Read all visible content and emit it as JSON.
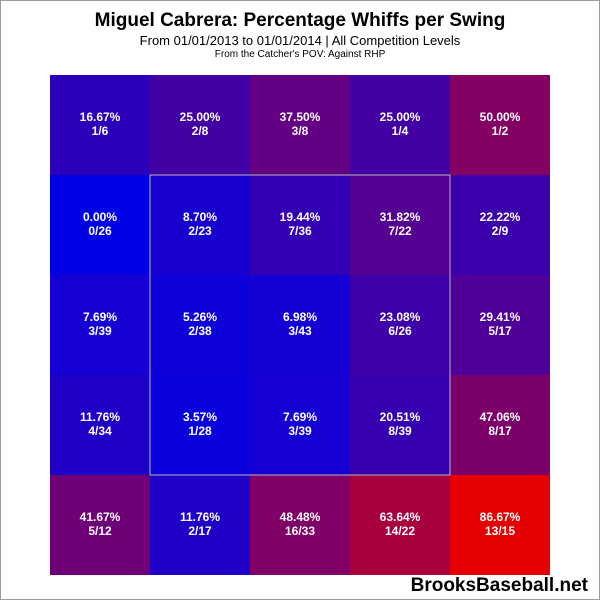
{
  "title": "Miguel Cabrera: Percentage Whiffs per Swing",
  "subtitle": "From 01/01/2013 to 01/01/2014 | All Competition Levels",
  "subtitle2": "From the Catcher's POV:   Against RHP",
  "watermark": "BrooksBaseball.net",
  "chart_data": {
    "type": "heatmap",
    "rows": 5,
    "cols": 5,
    "strike_zone": {
      "row_start": 1,
      "row_end": 3,
      "col_start": 1,
      "col_end": 3
    },
    "color_scale": {
      "low": "#0000e6",
      "high": "#e60000"
    },
    "cells": [
      [
        {
          "pct": "16.67%",
          "frac": "1/6",
          "value": 16.67
        },
        {
          "pct": "25.00%",
          "frac": "2/8",
          "value": 25.0
        },
        {
          "pct": "37.50%",
          "frac": "3/8",
          "value": 37.5
        },
        {
          "pct": "25.00%",
          "frac": "1/4",
          "value": 25.0
        },
        {
          "pct": "50.00%",
          "frac": "1/2",
          "value": 50.0
        }
      ],
      [
        {
          "pct": "0.00%",
          "frac": "0/26",
          "value": 0.0
        },
        {
          "pct": "8.70%",
          "frac": "2/23",
          "value": 8.7
        },
        {
          "pct": "19.44%",
          "frac": "7/36",
          "value": 19.44
        },
        {
          "pct": "31.82%",
          "frac": "7/22",
          "value": 31.82
        },
        {
          "pct": "22.22%",
          "frac": "2/9",
          "value": 22.22
        }
      ],
      [
        {
          "pct": "7.69%",
          "frac": "3/39",
          "value": 7.69
        },
        {
          "pct": "5.26%",
          "frac": "2/38",
          "value": 5.26
        },
        {
          "pct": "6.98%",
          "frac": "3/43",
          "value": 6.98
        },
        {
          "pct": "23.08%",
          "frac": "6/26",
          "value": 23.08
        },
        {
          "pct": "29.41%",
          "frac": "5/17",
          "value": 29.41
        }
      ],
      [
        {
          "pct": "11.76%",
          "frac": "4/34",
          "value": 11.76
        },
        {
          "pct": "3.57%",
          "frac": "1/28",
          "value": 3.57
        },
        {
          "pct": "7.69%",
          "frac": "3/39",
          "value": 7.69
        },
        {
          "pct": "20.51%",
          "frac": "8/39",
          "value": 20.51
        },
        {
          "pct": "47.06%",
          "frac": "8/17",
          "value": 47.06
        }
      ],
      [
        {
          "pct": "41.67%",
          "frac": "5/12",
          "value": 41.67
        },
        {
          "pct": "11.76%",
          "frac": "2/17",
          "value": 11.76
        },
        {
          "pct": "48.48%",
          "frac": "16/33",
          "value": 48.48
        },
        {
          "pct": "63.64%",
          "frac": "14/22",
          "value": 63.64
        },
        {
          "pct": "86.67%",
          "frac": "13/15",
          "value": 86.67
        }
      ]
    ]
  }
}
